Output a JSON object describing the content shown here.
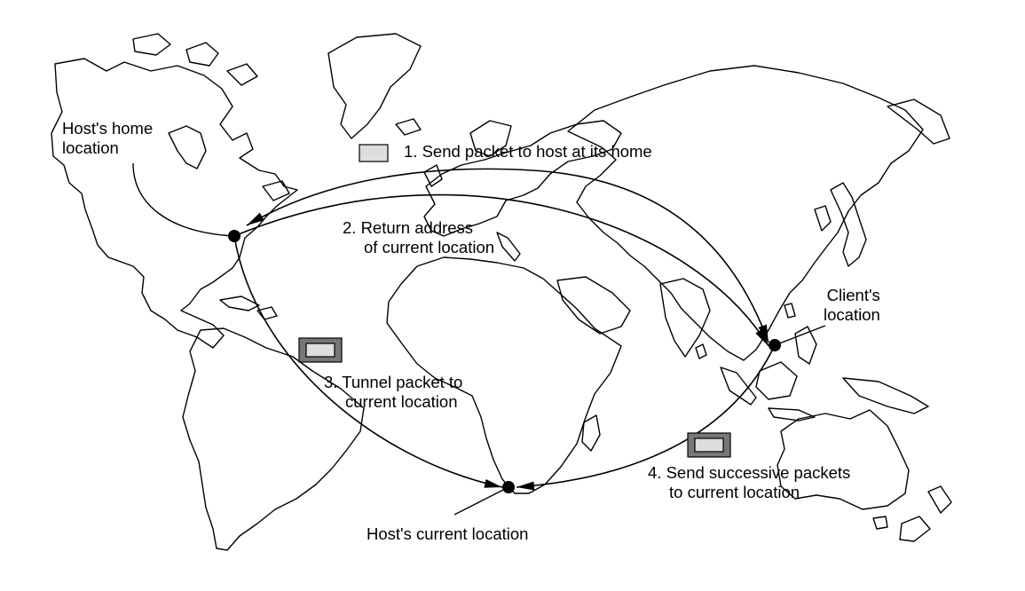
{
  "labels": {
    "home": [
      "Host's home",
      "location"
    ],
    "step1": "1. Send packet to host at its home",
    "step2": [
      "2. Return address",
      "of current location"
    ],
    "step3": [
      "3. Tunnel packet to",
      "current location"
    ],
    "step4": [
      "4. Send successive packets",
      "to current location"
    ],
    "client": [
      "Client's",
      "location"
    ],
    "current": "Host's current location"
  },
  "colors": {
    "line": "#000000",
    "packet_fill": "#dddddd",
    "packet_outer": "#777777"
  }
}
